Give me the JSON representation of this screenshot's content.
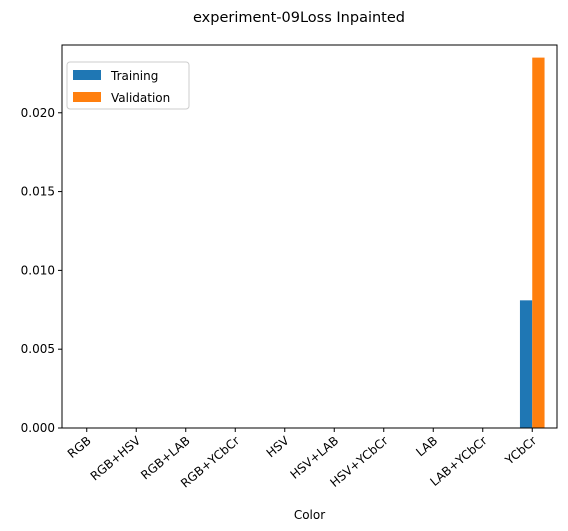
{
  "chart_data": {
    "type": "bar",
    "title": "experiment-09Loss Inpainted",
    "xlabel": "Color",
    "ylabel": "",
    "categories": [
      "RGB",
      "RGB+HSV",
      "RGB+LAB",
      "RGB+YCbCr",
      "HSV",
      "HSV+LAB",
      "HSV+YCbCr",
      "LAB",
      "LAB+YCbCr",
      "YCbCr"
    ],
    "series": [
      {
        "name": "Training",
        "color": "#1f77b4",
        "values": [
          0,
          0,
          0,
          0,
          0,
          0,
          0,
          0,
          0,
          0.0081
        ]
      },
      {
        "name": "Validation",
        "color": "#ff7f0e",
        "values": [
          0,
          0,
          0,
          0,
          0,
          0,
          0,
          0,
          0,
          0.0235
        ]
      }
    ],
    "ylim": [
      0,
      0.0243
    ],
    "yticks": [
      "0.000",
      "0.005",
      "0.010",
      "0.015",
      "0.020"
    ],
    "legend": "top-left",
    "grid": false
  }
}
